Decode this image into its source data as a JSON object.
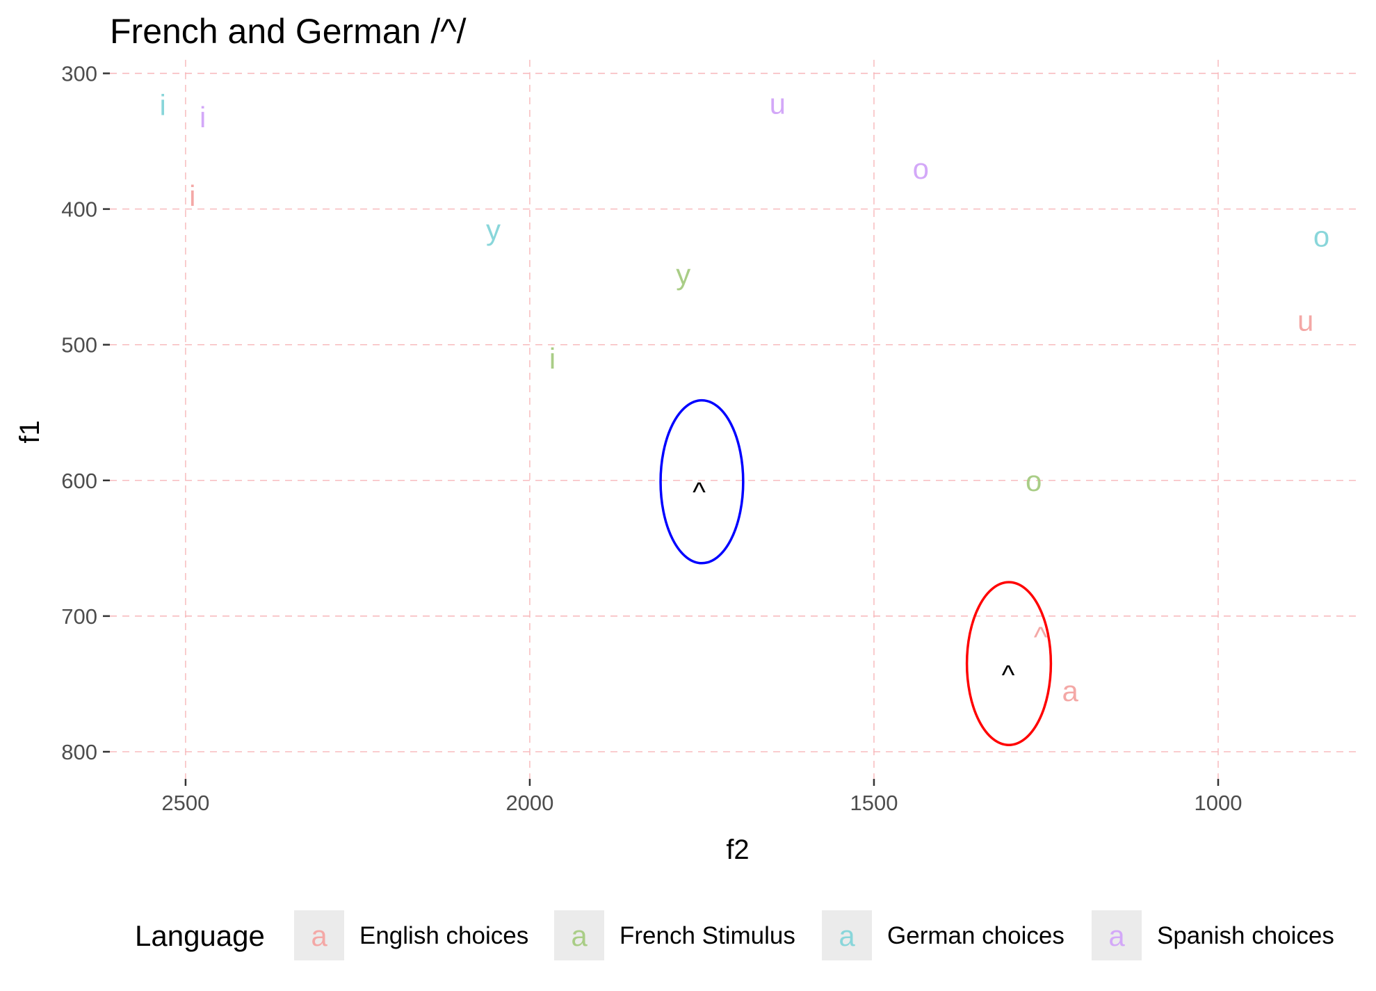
{
  "chart_data": {
    "type": "scatter",
    "title": "French and German /^/",
    "xlabel": "f2",
    "ylabel": "f1",
    "x_reversed": true,
    "y_reversed": true,
    "xlim": [
      2610,
      800
    ],
    "ylim": [
      290,
      820
    ],
    "x_ticks": [
      2500,
      2000,
      1500,
      1000
    ],
    "y_ticks": [
      300,
      400,
      500,
      600,
      700,
      800
    ],
    "grid": "dashed major lines",
    "colors": {
      "English choices": "#f4a8a6",
      "French Stimulus": "#a9cd86",
      "German choices": "#89d6da",
      "Spanish choices": "#d3a8f8",
      "ellipse_french": "#0000ff",
      "ellipse_german": "#ff0000"
    },
    "series": [
      {
        "name": "English choices",
        "points": [
          {
            "label": "i",
            "f2": 2490,
            "f1": 390
          },
          {
            "label": "u",
            "f2": 873,
            "f1": 482
          },
          {
            "label": "^",
            "f2": 1258,
            "f1": 715
          },
          {
            "label": "a",
            "f2": 1215,
            "f1": 755
          }
        ]
      },
      {
        "name": "French Stimulus",
        "points": [
          {
            "label": "y",
            "f2": 1777,
            "f1": 448
          },
          {
            "label": "i",
            "f2": 1967,
            "f1": 510
          },
          {
            "label": "o",
            "f2": 1268,
            "f1": 600
          }
        ]
      },
      {
        "name": "German choices",
        "points": [
          {
            "label": "i",
            "f2": 2533,
            "f1": 323
          },
          {
            "label": "y",
            "f2": 2053,
            "f1": 415
          },
          {
            "label": "o",
            "f2": 850,
            "f1": 420
          }
        ]
      },
      {
        "name": "Spanish choices",
        "points": [
          {
            "label": "i",
            "f2": 2475,
            "f1": 332
          },
          {
            "label": "u",
            "f2": 1640,
            "f1": 322
          },
          {
            "label": "o",
            "f2": 1432,
            "f1": 370
          }
        ]
      }
    ],
    "targets": [
      {
        "label": "^",
        "f2": 1754,
        "f1": 600,
        "ellipse": {
          "center_f2": 1750,
          "center_f1": 601,
          "radius_f2": 60,
          "radius_f1": 60,
          "color": "#0000ff"
        }
      },
      {
        "label": "^",
        "f2": 1305,
        "f1": 735,
        "ellipse": {
          "center_f2": 1304,
          "center_f1": 735,
          "radius_f2": 61,
          "radius_f1": 60,
          "color": "#ff0000"
        }
      }
    ],
    "legend": {
      "title": "Language",
      "position": "bottom",
      "key_glyph": "a",
      "entries": [
        "English choices",
        "French Stimulus",
        "German choices",
        "Spanish choices"
      ]
    }
  }
}
